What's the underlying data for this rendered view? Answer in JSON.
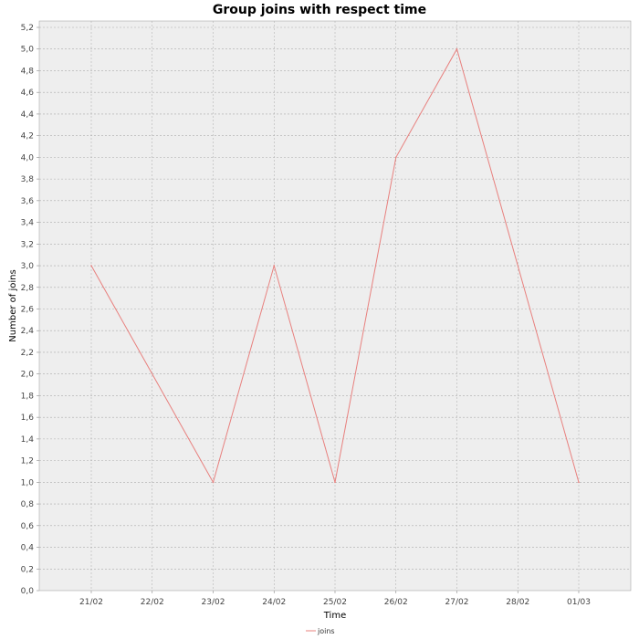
{
  "chart_data": {
    "type": "line",
    "title": "Group joins with respect time",
    "xlabel": "Time",
    "ylabel": "Number of joins",
    "categories": [
      "21/02",
      "22/02",
      "23/02",
      "24/02",
      "25/02",
      "26/02",
      "27/02",
      "28/02",
      "01/03"
    ],
    "series": [
      {
        "name": "joins",
        "color": "#e8807e",
        "points": [
          {
            "x": "21/02",
            "y": 3.0
          },
          {
            "x": "23/02",
            "y": 1.0
          },
          {
            "x": "24/02",
            "y": 3.0
          },
          {
            "x": "25/02",
            "y": 1.0
          },
          {
            "x": "26/02",
            "y": 4.0
          },
          {
            "x": "27/02",
            "y": 5.0
          },
          {
            "x": "01/03",
            "y": 1.0
          }
        ]
      }
    ],
    "ylim": [
      0,
      5.2
    ],
    "ytick_step": 0.2,
    "ytick_labels": [
      "0,0",
      "0,2",
      "0,4",
      "0,6",
      "0,8",
      "1,0",
      "1,2",
      "1,4",
      "1,6",
      "1,8",
      "2,0",
      "2,2",
      "2,4",
      "2,6",
      "2,8",
      "3,0",
      "3,2",
      "3,4",
      "3,6",
      "3,8",
      "4,0",
      "4,2",
      "4,4",
      "4,6",
      "4,8",
      "5,0",
      "5,2"
    ],
    "grid": true,
    "legend": "bottom-center",
    "plot_background": "#eeeeee",
    "grid_color": "#aaaaaa"
  }
}
